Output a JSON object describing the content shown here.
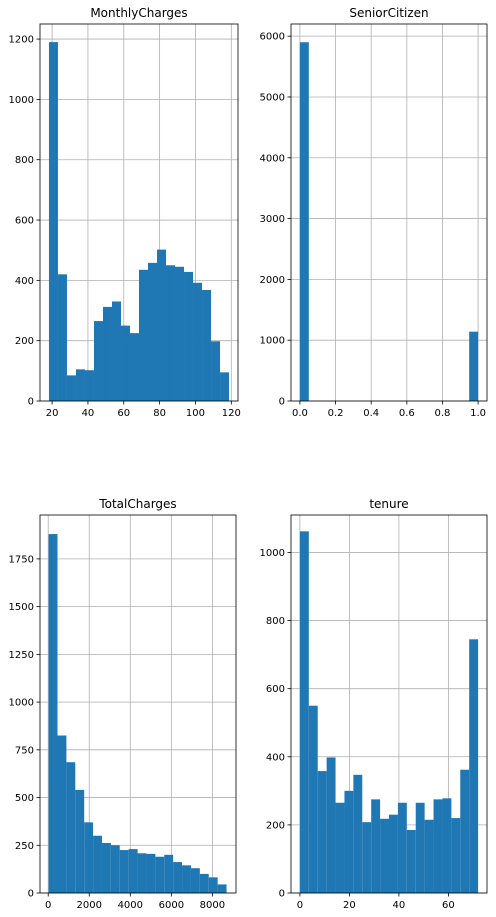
{
  "chart_data": [
    {
      "type": "bar",
      "title": "MonthlyCharges",
      "xlim": [
        13.25,
        123.75
      ],
      "ylim": [
        0,
        1250
      ],
      "xticks": [
        20,
        40,
        60,
        80,
        100,
        120
      ],
      "yticks": [
        0,
        200,
        400,
        600,
        800,
        1000,
        1200
      ],
      "grid": true,
      "color": "#1f77b4",
      "bin_edges": [
        18.25,
        23.275,
        28.3,
        33.325,
        38.35,
        43.375,
        48.4,
        53.425,
        58.45,
        63.475,
        68.5,
        73.525,
        78.55,
        83.575,
        88.6,
        93.625,
        98.65,
        103.675,
        108.7,
        113.725,
        118.75
      ],
      "values": [
        1190,
        420,
        85,
        105,
        102,
        265,
        312,
        330,
        250,
        225,
        435,
        458,
        502,
        450,
        445,
        428,
        392,
        368,
        198,
        95
      ]
    },
    {
      "type": "bar",
      "title": "SeniorCitizen",
      "xlim": [
        -0.05,
        1.05
      ],
      "ylim": [
        0,
        6200
      ],
      "xticks": [
        0.0,
        0.2,
        0.4,
        0.6,
        0.8,
        1.0
      ],
      "xtick_labels": [
        "0.0",
        "0.2",
        "0.4",
        "0.6",
        "0.8",
        "1.0"
      ],
      "yticks": [
        0,
        1000,
        2000,
        3000,
        4000,
        5000,
        6000
      ],
      "grid": true,
      "color": "#1f77b4",
      "bin_edges": [
        0,
        0.05,
        0.1,
        0.15,
        0.2,
        0.25,
        0.3,
        0.35,
        0.4,
        0.45,
        0.5,
        0.55,
        0.6,
        0.65,
        0.7,
        0.75,
        0.8,
        0.85,
        0.9,
        0.95,
        1.0
      ],
      "values": [
        5900,
        0,
        0,
        0,
        0,
        0,
        0,
        0,
        0,
        0,
        0,
        0,
        0,
        0,
        0,
        0,
        0,
        0,
        0,
        1140
      ]
    },
    {
      "type": "bar",
      "title": "TotalCharges",
      "xlim": [
        -400,
        9150
      ],
      "ylim": [
        0,
        1980
      ],
      "xticks": [
        0,
        2000,
        4000,
        6000,
        8000
      ],
      "yticks": [
        0,
        250,
        500,
        750,
        1000,
        1250,
        1500,
        1750
      ],
      "grid": true,
      "color": "#1f77b4",
      "bin_edges": [
        18.8,
        452.3,
        885.8,
        1319.3,
        1752.8,
        2186.3,
        2619.8,
        3053.3,
        3486.8,
        3920.3,
        4353.8,
        4787.3,
        5220.8,
        5654.3,
        6087.8,
        6521.3,
        6954.8,
        7388.3,
        7821.8,
        8255.3,
        8688.8
      ],
      "values": [
        1880,
        825,
        685,
        540,
        370,
        300,
        262,
        250,
        225,
        230,
        208,
        205,
        190,
        200,
        162,
        145,
        130,
        100,
        82,
        45
      ]
    },
    {
      "type": "bar",
      "title": "tenure",
      "xlim": [
        -3.6,
        75.6
      ],
      "ylim": [
        0,
        1110
      ],
      "xticks": [
        0,
        20,
        40,
        60
      ],
      "yticks": [
        0,
        200,
        400,
        600,
        800,
        1000
      ],
      "grid": true,
      "color": "#1f77b4",
      "bin_edges": [
        0,
        3.6,
        7.2,
        10.8,
        14.4,
        18.0,
        21.6,
        25.2,
        28.8,
        32.4,
        36.0,
        39.6,
        43.2,
        46.8,
        50.4,
        54.0,
        57.6,
        61.2,
        64.8,
        68.4,
        72.0
      ],
      "values": [
        1062,
        550,
        358,
        398,
        265,
        300,
        347,
        208,
        275,
        218,
        230,
        265,
        185,
        265,
        215,
        275,
        278,
        220,
        362,
        745
      ]
    }
  ]
}
